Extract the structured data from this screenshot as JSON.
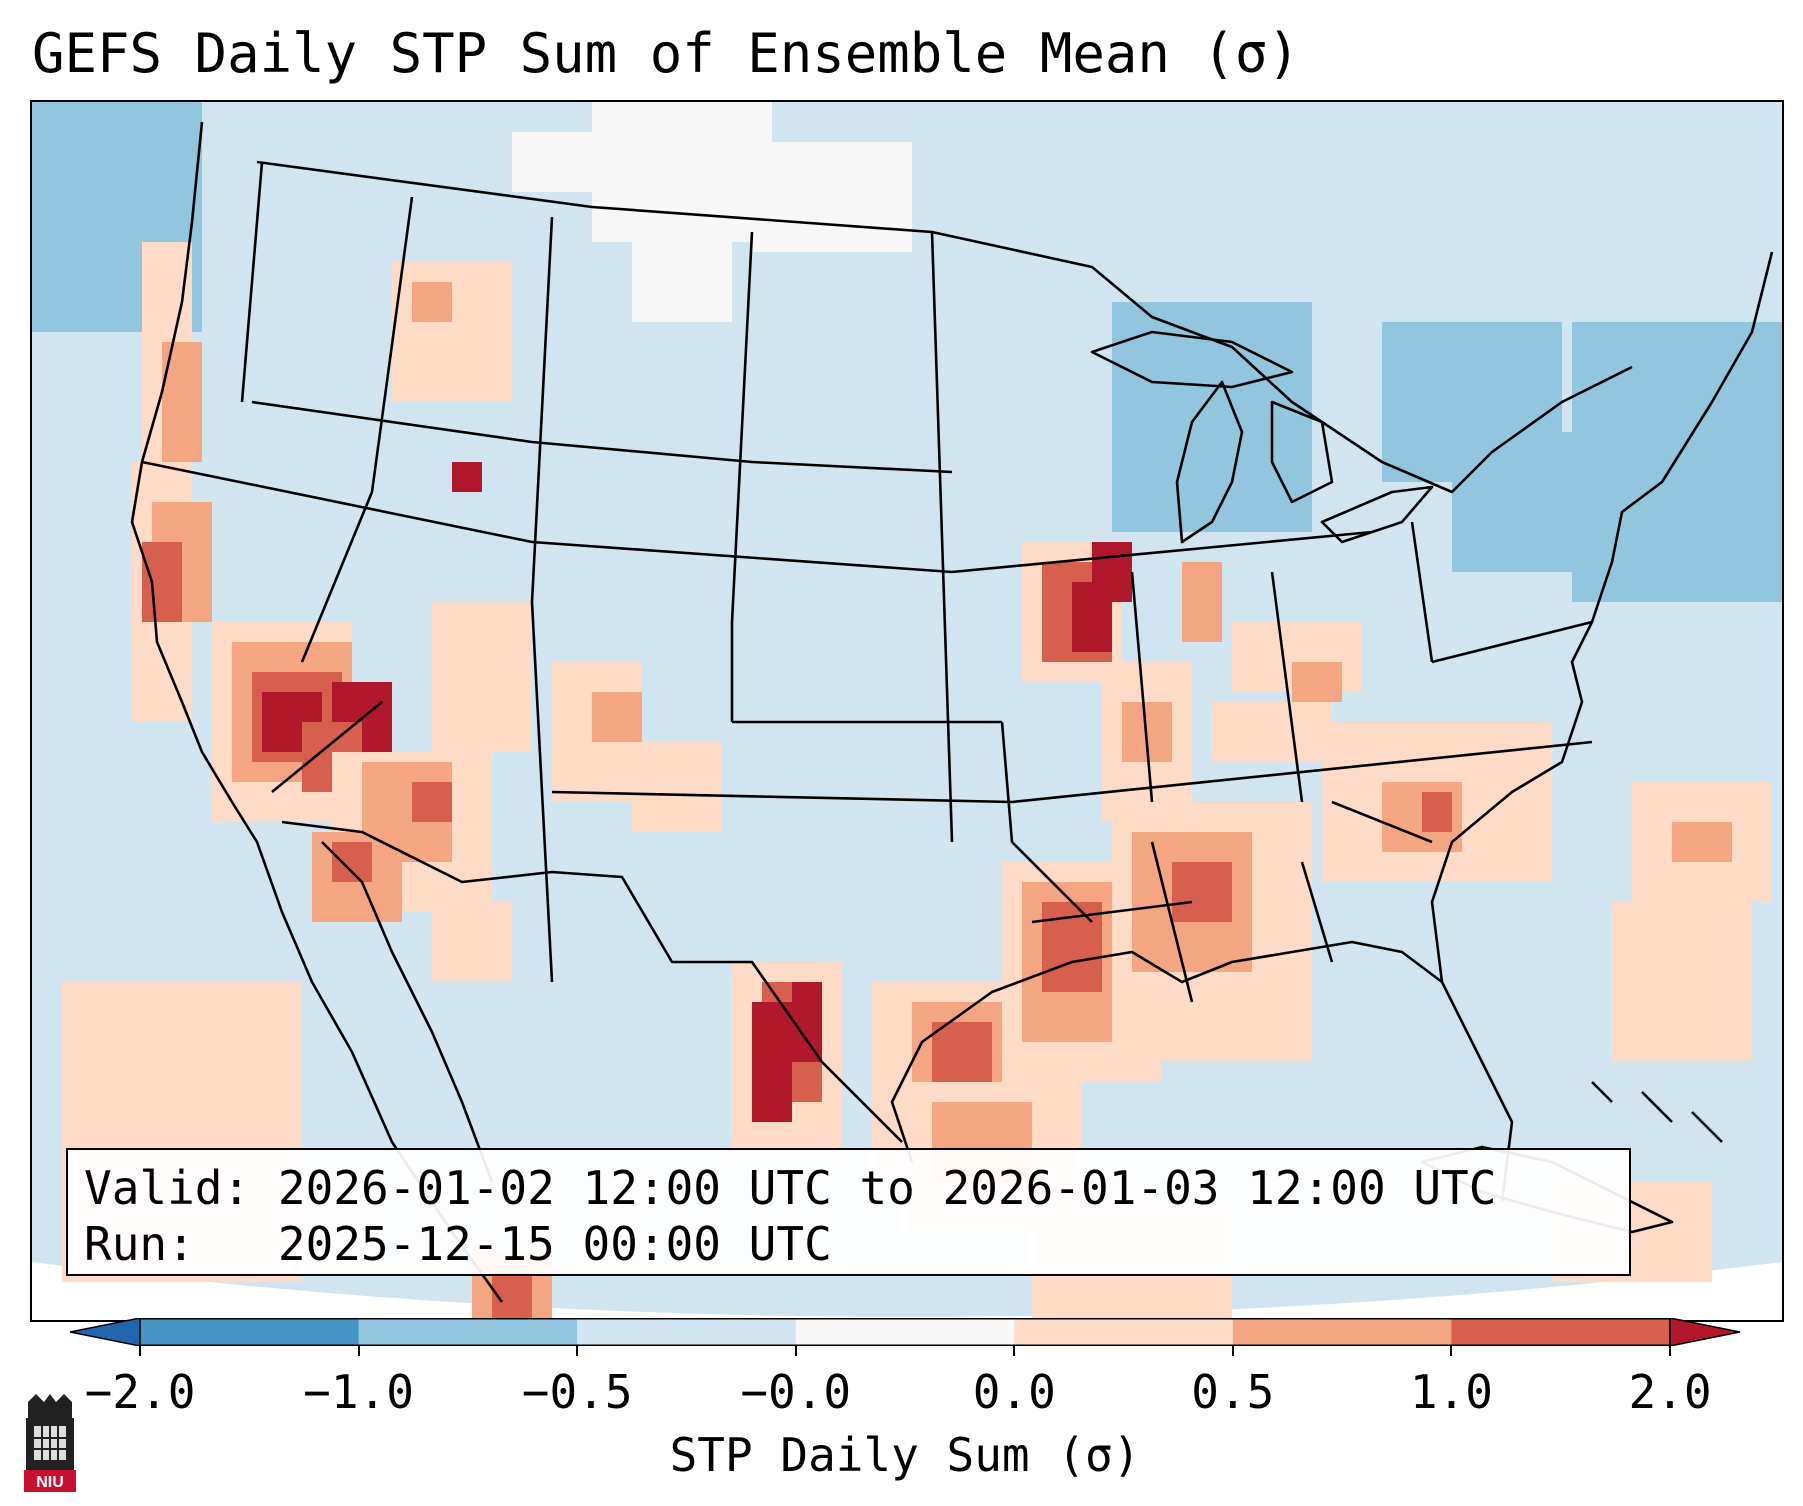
{
  "title": "GEFS Daily STP Sum of Ensemble Mean (σ)",
  "info": {
    "valid_label": "Valid:",
    "valid_value": "2026-01-02 12:00 UTC to 2026-01-03 12:00 UTC",
    "run_label": "Run:",
    "run_value": "2025-12-15 00:00 UTC"
  },
  "colorbar": {
    "label": "STP Daily Sum (σ)",
    "ticks": [
      "−2.0",
      "−1.0",
      "−0.5",
      "−0.0",
      "0.0",
      "0.5",
      "1.0",
      "2.0"
    ],
    "bins": [
      {
        "range": "< -2.0",
        "color": "#2166ac"
      },
      {
        "range": "-2.0 to -1.0",
        "color": "#4393c3"
      },
      {
        "range": "-1.0 to -0.5",
        "color": "#92c5de"
      },
      {
        "range": "-0.5 to -0.0",
        "color": "#d1e5f0"
      },
      {
        "range": "-0.0 to 0.0",
        "color": "#f7f7f7"
      },
      {
        "range": "0.0 to 0.5",
        "color": "#fddbc7"
      },
      {
        "range": "0.5 to 1.0",
        "color": "#f4a582"
      },
      {
        "range": "1.0 to 2.0",
        "color": "#d6604d"
      },
      {
        "range": "> 2.0",
        "color": "#b2182b"
      }
    ]
  },
  "logo": {
    "text": "NIU",
    "name": "Northern Illinois University logo"
  },
  "map": {
    "projection": "Lambert Conformal (CONUS)",
    "background_color": "#d1e5f0",
    "hotspots": [
      {
        "region": "Southern Texas / Rio Grande",
        "level": "> 2.0"
      },
      {
        "region": "Iowa / Illinois border",
        "level": "> 2.0"
      },
      {
        "region": "Southern Nevada / SE California",
        "level": "> 2.0"
      },
      {
        "region": "East Texas / Louisiana",
        "level": "1.0 to 2.0"
      },
      {
        "region": "Great Lakes / New England",
        "level": "-1.0 to -0.5"
      }
    ]
  }
}
